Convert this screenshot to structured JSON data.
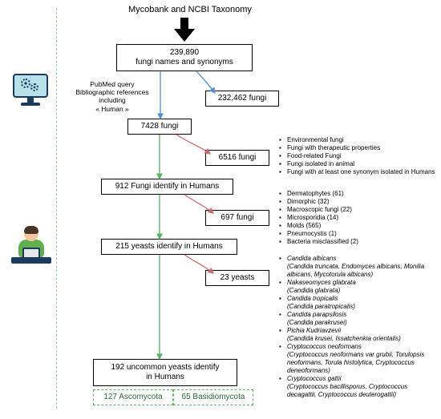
{
  "title": "Mycobank and NCBI Taxonomy",
  "colors": {
    "boxBorder": "#000000",
    "dashGreen": "#57b560",
    "arrowBlue": "#4d8fd6",
    "arrowGreen": "#57b560",
    "arrowRed": "#cc6a6a"
  },
  "boxes": {
    "b1": {
      "line1": "239,890",
      "line2": "fungi names and synonyms"
    },
    "b1a": "232,462 fungi",
    "b2": "7428 fungi",
    "b2a": "6516 fungi",
    "b3": "912 Fungi identify in Humans",
    "b3a": "697 fungi",
    "b4": "215 yeasts identify in Humans",
    "b4a": "23 yeasts",
    "b5": {
      "line1": "192 uncommon yeasts identify",
      "line2": "in Humans"
    },
    "b5l": "127 Ascomycota",
    "b5r": "65 Basidiomycota"
  },
  "labels": {
    "pubmed": {
      "l1": "PubMed query",
      "l2": "Bibliographic references including",
      "l3": "« Human »"
    }
  },
  "bullets1": [
    "Environmental fungi",
    "Fungi with therapeutic properties",
    "Food-related Fungi",
    "Fungi isolated in animal",
    "Fungi with at least one synonym isolated in Humans"
  ],
  "bullets2": [
    "Dermatophytes (61)",
    "Dimorphic (32)",
    "Macroscopic fungi (22)",
    "Microsporidia (14)",
    "Molds (565)",
    "Pneumocystis (1)",
    "Bacteria misclassified (2)"
  ],
  "bullets3": [
    {
      "t": "Candida albicans",
      "s": "(Candida truncata, Endomyces albicans, Monilia albicans, Mycotorula albicans)"
    },
    {
      "t": "Nakaseomyces glabrata",
      "s": "(Candida glabrata)"
    },
    {
      "t": "Candida tropicalis",
      "s": "(Candida paratropicalis)"
    },
    {
      "t": "Candida parapsilosis",
      "s": "(Candida parakrusei)"
    },
    {
      "t": "Pichia Kudriavzevii",
      "s": "(Candida krusei, Issatchenkia orientalis)"
    },
    {
      "t": "Cryptococcus neoformans",
      "s": "(Cryptococcus neoformans var grubii, Torulopsis neoformans, Torula histolytica, Cryptococcus deneoformans)"
    },
    {
      "t": "Cryptococcus gattii",
      "s": "(Cryptococcus bacillisporus, Cryptococcus decagattii, Cryptococcus deuterogattii)"
    }
  ]
}
